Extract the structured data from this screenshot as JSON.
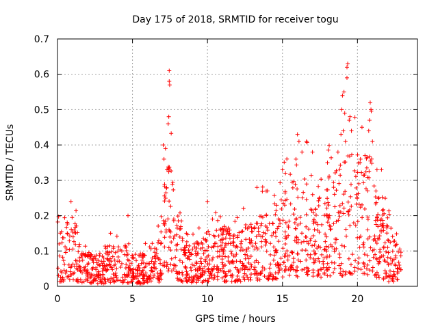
{
  "chart_data": {
    "type": "scatter",
    "title": "Day 175 of 2018, SRMTID for receiver togu",
    "xlabel": "GPS time / hours",
    "ylabel": "SRMTID / TECUs",
    "xlim": [
      0,
      24
    ],
    "ylim": [
      0,
      0.7
    ],
    "x_ticks": [
      "0",
      "5",
      "10",
      "15",
      "20"
    ],
    "y_ticks": [
      "0",
      "0.1",
      "0.2",
      "0.3",
      "0.4",
      "0.5",
      "0.6",
      "0.7"
    ],
    "grid": true,
    "marker": "+",
    "series_color": "#ff0000",
    "point_count": 1500,
    "envelope": [
      {
        "x": 0.0,
        "y": 0.08
      },
      {
        "x": 0.5,
        "y": 0.1
      },
      {
        "x": 1.0,
        "y": 0.11
      },
      {
        "x": 1.5,
        "y": 0.08
      },
      {
        "x": 2.0,
        "y": 0.06
      },
      {
        "x": 3.0,
        "y": 0.05
      },
      {
        "x": 3.5,
        "y": 0.07
      },
      {
        "x": 4.0,
        "y": 0.06
      },
      {
        "x": 4.5,
        "y": 0.07
      },
      {
        "x": 5.0,
        "y": 0.05
      },
      {
        "x": 6.0,
        "y": 0.05
      },
      {
        "x": 6.8,
        "y": 0.08
      },
      {
        "x": 7.2,
        "y": 0.18
      },
      {
        "x": 7.5,
        "y": 0.2
      },
      {
        "x": 7.9,
        "y": 0.12
      },
      {
        "x": 8.5,
        "y": 0.07
      },
      {
        "x": 9.0,
        "y": 0.06
      },
      {
        "x": 10.0,
        "y": 0.08
      },
      {
        "x": 11.0,
        "y": 0.09
      },
      {
        "x": 12.0,
        "y": 0.09
      },
      {
        "x": 13.0,
        "y": 0.1
      },
      {
        "x": 14.0,
        "y": 0.12
      },
      {
        "x": 15.0,
        "y": 0.14
      },
      {
        "x": 16.0,
        "y": 0.17
      },
      {
        "x": 17.0,
        "y": 0.16
      },
      {
        "x": 18.0,
        "y": 0.17
      },
      {
        "x": 19.0,
        "y": 0.19
      },
      {
        "x": 19.5,
        "y": 0.2
      },
      {
        "x": 20.0,
        "y": 0.21
      },
      {
        "x": 20.5,
        "y": 0.22
      },
      {
        "x": 21.0,
        "y": 0.2
      },
      {
        "x": 21.5,
        "y": 0.14
      },
      {
        "x": 22.0,
        "y": 0.09
      },
      {
        "x": 22.5,
        "y": 0.07
      },
      {
        "x": 22.9,
        "y": 0.06
      }
    ],
    "highlights": [
      {
        "x": 7.45,
        "y": 0.61
      },
      {
        "x": 7.45,
        "y": 0.58
      },
      {
        "x": 7.48,
        "y": 0.57
      },
      {
        "x": 7.42,
        "y": 0.48
      },
      {
        "x": 7.38,
        "y": 0.46
      },
      {
        "x": 7.05,
        "y": 0.4
      },
      {
        "x": 7.2,
        "y": 0.39
      },
      {
        "x": 7.1,
        "y": 0.36
      },
      {
        "x": 7.3,
        "y": 0.33
      },
      {
        "x": 10.0,
        "y": 0.24
      },
      {
        "x": 0.9,
        "y": 0.24
      },
      {
        "x": 4.7,
        "y": 0.2
      },
      {
        "x": 19.35,
        "y": 0.63
      },
      {
        "x": 19.3,
        "y": 0.62
      },
      {
        "x": 19.3,
        "y": 0.59
      },
      {
        "x": 19.1,
        "y": 0.55
      },
      {
        "x": 19.0,
        "y": 0.54
      },
      {
        "x": 18.95,
        "y": 0.5
      },
      {
        "x": 19.15,
        "y": 0.49
      },
      {
        "x": 19.5,
        "y": 0.48
      },
      {
        "x": 19.45,
        "y": 0.47
      },
      {
        "x": 19.6,
        "y": 0.44
      },
      {
        "x": 19.05,
        "y": 0.44
      },
      {
        "x": 18.9,
        "y": 0.43
      },
      {
        "x": 19.2,
        "y": 0.41
      },
      {
        "x": 20.85,
        "y": 0.52
      },
      {
        "x": 20.9,
        "y": 0.5
      },
      {
        "x": 20.8,
        "y": 0.47
      },
      {
        "x": 20.75,
        "y": 0.44
      },
      {
        "x": 21.0,
        "y": 0.41
      },
      {
        "x": 20.3,
        "y": 0.45
      },
      {
        "x": 20.5,
        "y": 0.37
      },
      {
        "x": 20.2,
        "y": 0.36
      },
      {
        "x": 16.0,
        "y": 0.43
      },
      {
        "x": 16.1,
        "y": 0.41
      },
      {
        "x": 16.6,
        "y": 0.41
      },
      {
        "x": 17.0,
        "y": 0.38
      },
      {
        "x": 16.3,
        "y": 0.38
      },
      {
        "x": 15.9,
        "y": 0.36
      },
      {
        "x": 13.3,
        "y": 0.28
      },
      {
        "x": 14.0,
        "y": 0.27
      },
      {
        "x": 15.0,
        "y": 0.33
      },
      {
        "x": 15.2,
        "y": 0.32
      },
      {
        "x": 18.0,
        "y": 0.35
      },
      {
        "x": 18.7,
        "y": 0.38
      },
      {
        "x": 21.3,
        "y": 0.33
      },
      {
        "x": 21.6,
        "y": 0.33
      },
      {
        "x": 22.0,
        "y": 0.17
      }
    ]
  }
}
